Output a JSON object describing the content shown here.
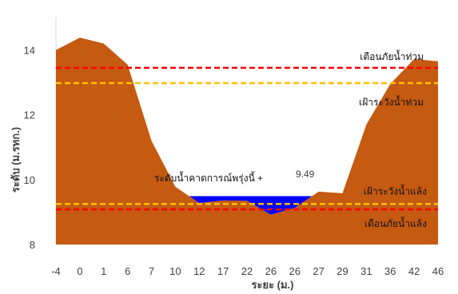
{
  "chart_data": {
    "type": "area",
    "title": "",
    "xlabel": "ระยะ (ม.)",
    "ylabel": "ระดับ (ม.รทก.)",
    "ylim": [
      8,
      15
    ],
    "yticks": [
      "8",
      "10",
      "12",
      "14"
    ],
    "categories": [
      "-4",
      "0",
      "1",
      "6",
      "7",
      "10",
      "12",
      "17",
      "22",
      "26",
      "26",
      "27",
      "29",
      "31",
      "36",
      "42",
      "46"
    ],
    "series": [
      {
        "kind": "ground-profile",
        "color": "#c55a11",
        "values": [
          14.0,
          14.38,
          14.2,
          13.55,
          11.2,
          9.78,
          9.28,
          9.36,
          9.35,
          8.92,
          9.13,
          9.63,
          9.58,
          11.7,
          12.95,
          13.72,
          13.65
        ]
      },
      {
        "kind": "forecast-water-level",
        "color": "#0000ff",
        "level": 9.49
      }
    ],
    "reference_lines": [
      {
        "key": "flood_warning",
        "label": "เตือนภัยน้ำท่วม",
        "value": 13.45,
        "color": "#ff0000",
        "style": "dashed"
      },
      {
        "key": "flood_watch",
        "label": "เฝ้าระวังน้ำท่วม",
        "value": 12.98,
        "color": "#ffc000",
        "style": "dashed"
      },
      {
        "key": "drought_watch",
        "label": "เฝ้าระวังน้ำแล้ง",
        "value": 9.25,
        "color": "#ffc000",
        "style": "dashed"
      },
      {
        "key": "drought_warning",
        "label": "เตือนภัยน้ำแล้ง",
        "value": 9.08,
        "color": "#ff0000",
        "style": "dashed"
      }
    ],
    "forecast": {
      "label": "ระดับน้ำคาดการณ์พรุ่งนี้ +",
      "value": "9.49"
    },
    "grid": false,
    "legend": "none"
  }
}
